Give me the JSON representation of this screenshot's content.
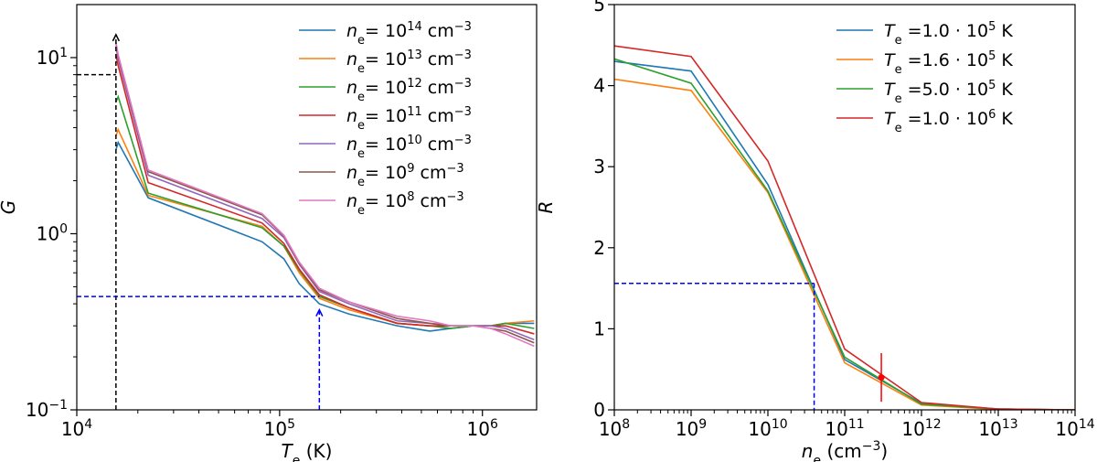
{
  "chart_data": [
    {
      "type": "line",
      "panel": "left",
      "xlabel": "T_e (K)",
      "ylabel": "G",
      "xscale": "log",
      "yscale": "log",
      "xlim": [
        10000,
        1850000
      ],
      "ylim": [
        0.1,
        20
      ],
      "xticks": [
        {
          "value": 10000,
          "mant": "10",
          "exp": "4"
        },
        {
          "value": 100000,
          "mant": "10",
          "exp": "5"
        },
        {
          "value": 1000000,
          "mant": "10",
          "exp": "6"
        }
      ],
      "yticks": [
        {
          "value": 0.1,
          "mant": "10",
          "exp": "−1"
        },
        {
          "value": 1,
          "mant": "10",
          "exp": "0"
        },
        {
          "value": 10,
          "mant": "10",
          "exp": "1"
        }
      ],
      "grid": false,
      "legend_position": "upper right",
      "series": [
        {
          "name": "n_e = 10^14 cm^-3",
          "label_prefix": "= 10",
          "exp": "14",
          "unit": " cm",
          "unit_exp": "−3",
          "color": "#1f77b4",
          "x": [
            15600,
            16000,
            22500,
            82000,
            105000,
            125000,
            157000,
            220000,
            380000,
            550000,
            700000,
            900000,
            1100000,
            1300000,
            1800000
          ],
          "y": [
            3.0,
            3.3,
            1.6,
            0.9,
            0.72,
            0.52,
            0.4,
            0.35,
            0.3,
            0.28,
            0.29,
            0.3,
            0.3,
            0.31,
            0.31
          ]
        },
        {
          "name": "n_e = 10^13 cm^-3",
          "label_prefix": "= 10",
          "exp": "13",
          "unit": " cm",
          "unit_exp": "−3",
          "color": "#ff7f0e",
          "x": [
            15600,
            16000,
            22500,
            82000,
            105000,
            125000,
            157000,
            220000,
            380000,
            550000,
            700000,
            900000,
            1100000,
            1300000,
            1800000
          ],
          "y": [
            3.6,
            3.9,
            1.65,
            1.1,
            0.85,
            0.6,
            0.43,
            0.37,
            0.31,
            0.3,
            0.3,
            0.3,
            0.3,
            0.31,
            0.32
          ]
        },
        {
          "name": "n_e = 10^12 cm^-3",
          "label_prefix": "= 10",
          "exp": "12",
          "unit": " cm",
          "unit_exp": "−3",
          "color": "#2ca02c",
          "x": [
            15600,
            16000,
            22500,
            82000,
            105000,
            125000,
            157000,
            220000,
            380000,
            550000,
            700000,
            900000,
            1100000,
            1300000,
            1800000
          ],
          "y": [
            5.6,
            6.0,
            1.7,
            1.08,
            0.85,
            0.62,
            0.44,
            0.38,
            0.31,
            0.3,
            0.29,
            0.3,
            0.3,
            0.31,
            0.29
          ]
        },
        {
          "name": "n_e = 10^11 cm^-3",
          "label_prefix": "= 10",
          "exp": "11",
          "unit": " cm",
          "unit_exp": "−3",
          "color": "#d62728",
          "x": [
            15600,
            16000,
            22500,
            82000,
            105000,
            125000,
            157000,
            220000,
            380000,
            550000,
            700000,
            900000,
            1100000,
            1300000,
            1800000
          ],
          "y": [
            10.3,
            9.0,
            1.95,
            1.15,
            0.88,
            0.63,
            0.45,
            0.38,
            0.31,
            0.3,
            0.3,
            0.3,
            0.3,
            0.3,
            0.27
          ]
        },
        {
          "name": "n_e = 10^10 cm^-3",
          "label_prefix": "= 10",
          "exp": "10",
          "unit": " cm",
          "unit_exp": "−3",
          "color": "#9467bd",
          "x": [
            15600,
            16000,
            22500,
            82000,
            105000,
            125000,
            157000,
            220000,
            380000,
            550000,
            700000,
            900000,
            1100000,
            1300000,
            1800000
          ],
          "y": [
            11.5,
            9.8,
            2.15,
            1.22,
            0.95,
            0.67,
            0.47,
            0.4,
            0.32,
            0.31,
            0.3,
            0.3,
            0.3,
            0.29,
            0.25
          ]
        },
        {
          "name": "n_e = 10^9 cm^-3",
          "label_prefix": "= 10",
          "exp": "9",
          "unit": " cm",
          "unit_exp": "−3",
          "color": "#8c564b",
          "x": [
            15600,
            16000,
            22500,
            82000,
            105000,
            125000,
            157000,
            220000,
            380000,
            550000,
            700000,
            900000,
            1100000,
            1300000,
            1800000
          ],
          "y": [
            12.0,
            10.2,
            2.25,
            1.28,
            0.97,
            0.68,
            0.48,
            0.41,
            0.33,
            0.31,
            0.3,
            0.3,
            0.29,
            0.28,
            0.24
          ]
        },
        {
          "name": "n_e = 10^8 cm^-3",
          "label_prefix": "= 10",
          "exp": "8",
          "unit": " cm",
          "unit_exp": "−3",
          "color": "#e377c2",
          "x": [
            15600,
            16000,
            22500,
            82000,
            105000,
            125000,
            157000,
            220000,
            380000,
            550000,
            700000,
            900000,
            1100000,
            1300000,
            1800000
          ],
          "y": [
            12.2,
            10.4,
            2.3,
            1.3,
            0.98,
            0.69,
            0.49,
            0.41,
            0.34,
            0.32,
            0.3,
            0.3,
            0.29,
            0.27,
            0.23
          ]
        }
      ],
      "annotations": [
        {
          "type": "dashed-line",
          "color": "#000000",
          "points": [
            [
              10000,
              8.0
            ],
            [
              15600,
              8.0
            ]
          ]
        },
        {
          "type": "dashed-arrow",
          "color": "#000000",
          "points": [
            [
              15600,
              0.1
            ],
            [
              15600,
              13.5
            ]
          ]
        },
        {
          "type": "dashed-line",
          "color": "#0000ff",
          "points": [
            [
              10000,
              0.44
            ],
            [
              157000,
              0.44
            ]
          ]
        },
        {
          "type": "dashed-arrow",
          "color": "#0000ff",
          "points": [
            [
              157000,
              0.1
            ],
            [
              157000,
              0.37
            ]
          ]
        }
      ]
    },
    {
      "type": "line",
      "panel": "right",
      "xlabel": "n_e (cm^-3)",
      "ylabel": "R",
      "xscale": "log",
      "yscale": "linear",
      "xlim": [
        100000000,
        100000000000000
      ],
      "ylim": [
        0,
        5
      ],
      "xticks": [
        {
          "value": 100000000,
          "mant": "10",
          "exp": "8"
        },
        {
          "value": 1000000000,
          "mant": "10",
          "exp": "9"
        },
        {
          "value": 10000000000,
          "mant": "10",
          "exp": "10"
        },
        {
          "value": 100000000000,
          "mant": "10",
          "exp": "11"
        },
        {
          "value": 1000000000000,
          "mant": "10",
          "exp": "12"
        },
        {
          "value": 10000000000000,
          "mant": "10",
          "exp": "13"
        },
        {
          "value": 100000000000000,
          "mant": "10",
          "exp": "14"
        }
      ],
      "yticks": [
        {
          "value": 0,
          "label": "0"
        },
        {
          "value": 1,
          "label": "1"
        },
        {
          "value": 2,
          "label": "2"
        },
        {
          "value": 3,
          "label": "3"
        },
        {
          "value": 4,
          "label": "4"
        },
        {
          "value": 5,
          "label": "5"
        }
      ],
      "grid": false,
      "legend_position": "upper right",
      "series": [
        {
          "name": "T_e = 1.0·10^5 K",
          "label_prefix": " =1.0 · 10",
          "exp": "5",
          "unit": " K",
          "color": "#1f77b4",
          "x": [
            100000000,
            1000000000,
            10000000000,
            100000000000,
            1000000000000,
            10000000000000,
            100000000000000
          ],
          "y": [
            4.3,
            4.18,
            2.78,
            0.62,
            0.08,
            0.01,
            0.0
          ]
        },
        {
          "name": "T_e = 1.6·10^5 K",
          "label_prefix": " =1.6 · 10",
          "exp": "5",
          "unit": " K",
          "color": "#ff7f0e",
          "x": [
            100000000,
            1000000000,
            10000000000,
            100000000000,
            1000000000000,
            10000000000000,
            100000000000000
          ],
          "y": [
            4.08,
            3.94,
            2.68,
            0.58,
            0.06,
            0.005,
            0.0
          ]
        },
        {
          "name": "T_e = 5.0·10^5 K",
          "label_prefix": " =5.0 · 10",
          "exp": "5",
          "unit": " K",
          "color": "#2ca02c",
          "x": [
            100000000,
            1000000000,
            10000000000,
            100000000000,
            1000000000000,
            10000000000000,
            100000000000000
          ],
          "y": [
            4.33,
            4.03,
            2.7,
            0.65,
            0.07,
            0.01,
            0.0
          ]
        },
        {
          "name": "T_e = 1.0·10^6 K",
          "label_prefix": " =1.0 · 10",
          "exp": "6",
          "unit": " K",
          "color": "#d62728",
          "x": [
            100000000,
            1000000000,
            10000000000,
            100000000000,
            1000000000000,
            10000000000000,
            100000000000000
          ],
          "y": [
            4.49,
            4.36,
            3.07,
            0.75,
            0.09,
            0.01,
            0.0
          ]
        }
      ],
      "annotations": [
        {
          "type": "dashed-line",
          "color": "#0000ff",
          "points": [
            [
              100000000,
              1.56
            ],
            [
              40000000000,
              1.56
            ]
          ]
        },
        {
          "type": "dashed-line",
          "color": "#0000ff",
          "points": [
            [
              40000000000,
              1.56
            ],
            [
              40000000000,
              0
            ]
          ]
        },
        {
          "type": "errorbar",
          "color": "#ff0000",
          "x": 300000000000,
          "y": 0.4,
          "yerr": [
            0.3,
            0.3
          ]
        }
      ]
    }
  ]
}
